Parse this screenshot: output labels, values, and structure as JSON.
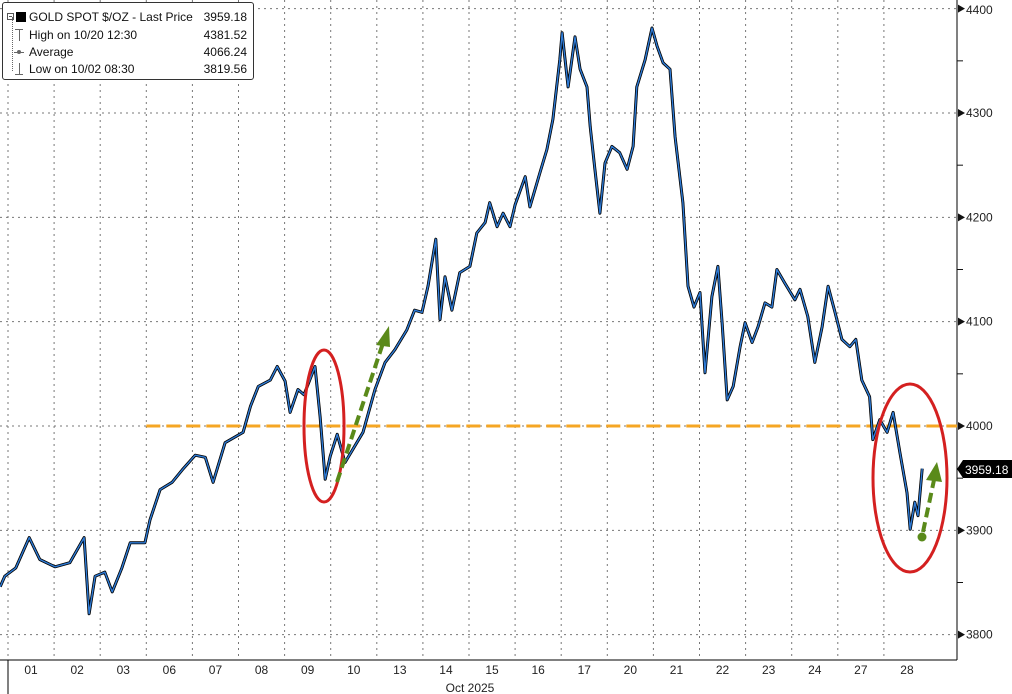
{
  "legend": {
    "series_label": "GOLD SPOT $/OZ - Last Price",
    "series_value": "3959.18",
    "high_label": "High on 10/20 12:30",
    "high_value": "4381.52",
    "avg_label": "Average",
    "avg_value": "4066.24",
    "low_label": "Low on 10/02 08:30",
    "low_value": "3819.56"
  },
  "last_price_tag": "3959.18",
  "chart_data": {
    "type": "line",
    "title": "",
    "xlabel": "Oct 2025",
    "ylabel": "",
    "ylim": [
      3775,
      4410
    ],
    "yticks": [
      "4400",
      "4300",
      "4200",
      "4100",
      "4000",
      "3900",
      "3800"
    ],
    "xticks": [
      "01",
      "02",
      "03",
      "06",
      "07",
      "08",
      "09",
      "10",
      "13",
      "14",
      "15",
      "16",
      "17",
      "20",
      "21",
      "22",
      "23",
      "24",
      "27",
      "28"
    ],
    "grid": true,
    "legend_position": "top-left",
    "colors": {
      "line": "#2e7bd6",
      "outline": "#000000",
      "reference": "#f5a623",
      "circle": "#d42020",
      "arrow": "#5a8a1a"
    },
    "reference_line": 4000,
    "series": [
      {
        "name": "GOLD SPOT $/OZ - Last Price",
        "points": [
          [
            "09/30",
            0.83,
            3846
          ],
          [
            "09/30",
            0.93,
            3856
          ],
          [
            "10/01",
            0.17,
            3864
          ],
          [
            "10/01",
            0.46,
            3893
          ],
          [
            "10/01",
            0.69,
            3872
          ],
          [
            "10/02",
            0.02,
            3865
          ],
          [
            "10/02",
            0.34,
            3869
          ],
          [
            "10/02",
            0.65,
            3893
          ],
          [
            "10/02",
            0.76,
            3820
          ],
          [
            "10/02",
            0.89,
            3856
          ],
          [
            "10/03",
            0.1,
            3860
          ],
          [
            "10/03",
            0.26,
            3841
          ],
          [
            "10/03",
            0.47,
            3864
          ],
          [
            "10/03",
            0.65,
            3888
          ],
          [
            "10/03",
            0.97,
            3888
          ],
          [
            "10/06",
            0.08,
            3910
          ],
          [
            "10/06",
            0.3,
            3939
          ],
          [
            "10/06",
            0.56,
            3946
          ],
          [
            "10/06",
            0.78,
            3958
          ],
          [
            "10/07",
            0.06,
            3972
          ],
          [
            "10/07",
            0.28,
            3970
          ],
          [
            "10/07",
            0.45,
            3946
          ],
          [
            "10/07",
            0.71,
            3984
          ],
          [
            "10/08",
            0.1,
            3994
          ],
          [
            "10/08",
            0.26,
            4019
          ],
          [
            "10/08",
            0.43,
            4038
          ],
          [
            "10/08",
            0.69,
            4044
          ],
          [
            "10/08",
            0.84,
            4057
          ],
          [
            "10/09",
            0.01,
            4043
          ],
          [
            "10/09",
            0.12,
            4013
          ],
          [
            "10/09",
            0.29,
            4035
          ],
          [
            "10/09",
            0.42,
            4030
          ],
          [
            "10/09",
            0.66,
            4057
          ],
          [
            "10/09",
            0.77,
            4009
          ],
          [
            "10/09",
            0.88,
            3949
          ],
          [
            "10/09",
            0.99,
            3971
          ],
          [
            "10/10",
            0.14,
            3992
          ],
          [
            "10/10",
            0.31,
            3965
          ],
          [
            "10/10",
            0.7,
            3994
          ],
          [
            "10/10",
            0.96,
            4035
          ],
          [
            "10/13",
            0.18,
            4061
          ],
          [
            "10/13",
            0.39,
            4073
          ],
          [
            "10/13",
            0.65,
            4092
          ],
          [
            "10/13",
            0.82,
            4111
          ],
          [
            "10/13",
            0.98,
            4109
          ],
          [
            "10/14",
            0.11,
            4134
          ],
          [
            "10/14",
            0.28,
            4179
          ],
          [
            "10/14",
            0.37,
            4102
          ],
          [
            "10/14",
            0.48,
            4143
          ],
          [
            "10/14",
            0.63,
            4111
          ],
          [
            "10/14",
            0.8,
            4147
          ],
          [
            "10/15",
            0.02,
            4153
          ],
          [
            "10/15",
            0.17,
            4185
          ],
          [
            "10/15",
            0.35,
            4195
          ],
          [
            "10/15",
            0.45,
            4214
          ],
          [
            "10/15",
            0.61,
            4191
          ],
          [
            "10/15",
            0.74,
            4204
          ],
          [
            "10/15",
            0.89,
            4191
          ],
          [
            "10/16",
            0.0,
            4212
          ],
          [
            "10/16",
            0.22,
            4239
          ],
          [
            "10/16",
            0.32,
            4210
          ],
          [
            "10/16",
            0.54,
            4243
          ],
          [
            "10/16",
            0.69,
            4265
          ],
          [
            "10/16",
            0.82,
            4294
          ],
          [
            "10/16",
            0.97,
            4351
          ],
          [
            "10/17",
            0.02,
            4377
          ],
          [
            "10/17",
            0.15,
            4325
          ],
          [
            "10/17",
            0.3,
            4373
          ],
          [
            "10/17",
            0.41,
            4342
          ],
          [
            "10/17",
            0.56,
            4325
          ],
          [
            "10/17",
            0.63,
            4287
          ],
          [
            "10/17",
            0.73,
            4246
          ],
          [
            "10/17",
            0.84,
            4204
          ],
          [
            "10/17",
            0.95,
            4252
          ],
          [
            "10/20",
            0.1,
            4268
          ],
          [
            "10/20",
            0.27,
            4262
          ],
          [
            "10/20",
            0.43,
            4246
          ],
          [
            "10/20",
            0.56,
            4268
          ],
          [
            "10/20",
            0.64,
            4325
          ],
          [
            "10/20",
            0.82,
            4351
          ],
          [
            "10/20",
            0.97,
            4381.52
          ],
          [
            "10/21",
            0.08,
            4364
          ],
          [
            "10/21",
            0.21,
            4348
          ],
          [
            "10/21",
            0.36,
            4342
          ],
          [
            "10/21",
            0.47,
            4277
          ],
          [
            "10/21",
            0.64,
            4214
          ],
          [
            "10/21",
            0.75,
            4134
          ],
          [
            "10/21",
            0.88,
            4114
          ],
          [
            "10/22",
            0.01,
            4128
          ],
          [
            "10/22",
            0.12,
            4051
          ],
          [
            "10/22",
            0.27,
            4124
          ],
          [
            "10/22",
            0.4,
            4153
          ],
          [
            "10/22",
            0.49,
            4099
          ],
          [
            "10/22",
            0.6,
            4025
          ],
          [
            "10/22",
            0.73,
            4038
          ],
          [
            "10/22",
            0.88,
            4076
          ],
          [
            "10/22",
            0.99,
            4099
          ],
          [
            "10/23",
            0.14,
            4080
          ],
          [
            "10/23",
            0.27,
            4095
          ],
          [
            "10/23",
            0.42,
            4118
          ],
          [
            "10/23",
            0.57,
            4114
          ],
          [
            "10/23",
            0.68,
            4150
          ],
          [
            "10/23",
            0.85,
            4137
          ],
          [
            "10/24",
            0.07,
            4121
          ],
          [
            "10/24",
            0.18,
            4131
          ],
          [
            "10/24",
            0.35,
            4105
          ],
          [
            "10/24",
            0.5,
            4061
          ],
          [
            "10/24",
            0.66,
            4095
          ],
          [
            "10/24",
            0.79,
            4134
          ],
          [
            "10/24",
            0.94,
            4109
          ],
          [
            "10/27",
            0.09,
            4083
          ],
          [
            "10/27",
            0.26,
            4076
          ],
          [
            "10/27",
            0.39,
            4083
          ],
          [
            "10/27",
            0.52,
            4044
          ],
          [
            "10/27",
            0.69,
            4028
          ],
          [
            "10/27",
            0.76,
            3987
          ],
          [
            "10/27",
            0.91,
            4006
          ],
          [
            "10/28",
            0.07,
            3994
          ],
          [
            "10/28",
            0.2,
            4013
          ],
          [
            "10/28",
            0.35,
            3974
          ],
          [
            "10/28",
            0.5,
            3936
          ],
          [
            "10/28",
            0.57,
            3901
          ],
          [
            "10/28",
            0.67,
            3927
          ],
          [
            "10/28",
            0.74,
            3914
          ],
          [
            "10/28",
            0.83,
            3959.18
          ]
        ]
      }
    ]
  }
}
